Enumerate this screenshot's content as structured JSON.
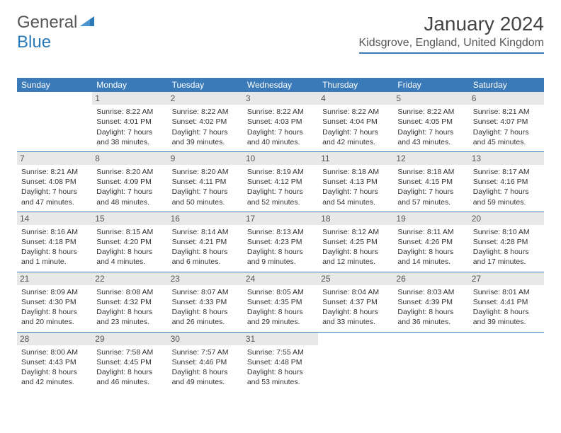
{
  "brand": {
    "word1": "General",
    "word2": "Blue",
    "word1_color": "#555555",
    "word2_color": "#2a7ab9"
  },
  "title": "January 2024",
  "location": "Kidsgrove, England, United Kingdom",
  "theme": {
    "header_bg": "#3b7ab8",
    "header_fg": "#ffffff",
    "daynum_bg": "#e8e8e8",
    "border": "#3b7ab8"
  },
  "day_names": [
    "Sunday",
    "Monday",
    "Tuesday",
    "Wednesday",
    "Thursday",
    "Friday",
    "Saturday"
  ],
  "weeks": [
    [
      {
        "n": "",
        "empty": true
      },
      {
        "n": "1",
        "sr": "Sunrise: 8:22 AM",
        "ss": "Sunset: 4:01 PM",
        "dl1": "Daylight: 7 hours",
        "dl2": "and 38 minutes."
      },
      {
        "n": "2",
        "sr": "Sunrise: 8:22 AM",
        "ss": "Sunset: 4:02 PM",
        "dl1": "Daylight: 7 hours",
        "dl2": "and 39 minutes."
      },
      {
        "n": "3",
        "sr": "Sunrise: 8:22 AM",
        "ss": "Sunset: 4:03 PM",
        "dl1": "Daylight: 7 hours",
        "dl2": "and 40 minutes."
      },
      {
        "n": "4",
        "sr": "Sunrise: 8:22 AM",
        "ss": "Sunset: 4:04 PM",
        "dl1": "Daylight: 7 hours",
        "dl2": "and 42 minutes."
      },
      {
        "n": "5",
        "sr": "Sunrise: 8:22 AM",
        "ss": "Sunset: 4:05 PM",
        "dl1": "Daylight: 7 hours",
        "dl2": "and 43 minutes."
      },
      {
        "n": "6",
        "sr": "Sunrise: 8:21 AM",
        "ss": "Sunset: 4:07 PM",
        "dl1": "Daylight: 7 hours",
        "dl2": "and 45 minutes."
      }
    ],
    [
      {
        "n": "7",
        "sr": "Sunrise: 8:21 AM",
        "ss": "Sunset: 4:08 PM",
        "dl1": "Daylight: 7 hours",
        "dl2": "and 47 minutes."
      },
      {
        "n": "8",
        "sr": "Sunrise: 8:20 AM",
        "ss": "Sunset: 4:09 PM",
        "dl1": "Daylight: 7 hours",
        "dl2": "and 48 minutes."
      },
      {
        "n": "9",
        "sr": "Sunrise: 8:20 AM",
        "ss": "Sunset: 4:11 PM",
        "dl1": "Daylight: 7 hours",
        "dl2": "and 50 minutes."
      },
      {
        "n": "10",
        "sr": "Sunrise: 8:19 AM",
        "ss": "Sunset: 4:12 PM",
        "dl1": "Daylight: 7 hours",
        "dl2": "and 52 minutes."
      },
      {
        "n": "11",
        "sr": "Sunrise: 8:18 AM",
        "ss": "Sunset: 4:13 PM",
        "dl1": "Daylight: 7 hours",
        "dl2": "and 54 minutes."
      },
      {
        "n": "12",
        "sr": "Sunrise: 8:18 AM",
        "ss": "Sunset: 4:15 PM",
        "dl1": "Daylight: 7 hours",
        "dl2": "and 57 minutes."
      },
      {
        "n": "13",
        "sr": "Sunrise: 8:17 AM",
        "ss": "Sunset: 4:16 PM",
        "dl1": "Daylight: 7 hours",
        "dl2": "and 59 minutes."
      }
    ],
    [
      {
        "n": "14",
        "sr": "Sunrise: 8:16 AM",
        "ss": "Sunset: 4:18 PM",
        "dl1": "Daylight: 8 hours",
        "dl2": "and 1 minute."
      },
      {
        "n": "15",
        "sr": "Sunrise: 8:15 AM",
        "ss": "Sunset: 4:20 PM",
        "dl1": "Daylight: 8 hours",
        "dl2": "and 4 minutes."
      },
      {
        "n": "16",
        "sr": "Sunrise: 8:14 AM",
        "ss": "Sunset: 4:21 PM",
        "dl1": "Daylight: 8 hours",
        "dl2": "and 6 minutes."
      },
      {
        "n": "17",
        "sr": "Sunrise: 8:13 AM",
        "ss": "Sunset: 4:23 PM",
        "dl1": "Daylight: 8 hours",
        "dl2": "and 9 minutes."
      },
      {
        "n": "18",
        "sr": "Sunrise: 8:12 AM",
        "ss": "Sunset: 4:25 PM",
        "dl1": "Daylight: 8 hours",
        "dl2": "and 12 minutes."
      },
      {
        "n": "19",
        "sr": "Sunrise: 8:11 AM",
        "ss": "Sunset: 4:26 PM",
        "dl1": "Daylight: 8 hours",
        "dl2": "and 14 minutes."
      },
      {
        "n": "20",
        "sr": "Sunrise: 8:10 AM",
        "ss": "Sunset: 4:28 PM",
        "dl1": "Daylight: 8 hours",
        "dl2": "and 17 minutes."
      }
    ],
    [
      {
        "n": "21",
        "sr": "Sunrise: 8:09 AM",
        "ss": "Sunset: 4:30 PM",
        "dl1": "Daylight: 8 hours",
        "dl2": "and 20 minutes."
      },
      {
        "n": "22",
        "sr": "Sunrise: 8:08 AM",
        "ss": "Sunset: 4:32 PM",
        "dl1": "Daylight: 8 hours",
        "dl2": "and 23 minutes."
      },
      {
        "n": "23",
        "sr": "Sunrise: 8:07 AM",
        "ss": "Sunset: 4:33 PM",
        "dl1": "Daylight: 8 hours",
        "dl2": "and 26 minutes."
      },
      {
        "n": "24",
        "sr": "Sunrise: 8:05 AM",
        "ss": "Sunset: 4:35 PM",
        "dl1": "Daylight: 8 hours",
        "dl2": "and 29 minutes."
      },
      {
        "n": "25",
        "sr": "Sunrise: 8:04 AM",
        "ss": "Sunset: 4:37 PM",
        "dl1": "Daylight: 8 hours",
        "dl2": "and 33 minutes."
      },
      {
        "n": "26",
        "sr": "Sunrise: 8:03 AM",
        "ss": "Sunset: 4:39 PM",
        "dl1": "Daylight: 8 hours",
        "dl2": "and 36 minutes."
      },
      {
        "n": "27",
        "sr": "Sunrise: 8:01 AM",
        "ss": "Sunset: 4:41 PM",
        "dl1": "Daylight: 8 hours",
        "dl2": "and 39 minutes."
      }
    ],
    [
      {
        "n": "28",
        "sr": "Sunrise: 8:00 AM",
        "ss": "Sunset: 4:43 PM",
        "dl1": "Daylight: 8 hours",
        "dl2": "and 42 minutes."
      },
      {
        "n": "29",
        "sr": "Sunrise: 7:58 AM",
        "ss": "Sunset: 4:45 PM",
        "dl1": "Daylight: 8 hours",
        "dl2": "and 46 minutes."
      },
      {
        "n": "30",
        "sr": "Sunrise: 7:57 AM",
        "ss": "Sunset: 4:46 PM",
        "dl1": "Daylight: 8 hours",
        "dl2": "and 49 minutes."
      },
      {
        "n": "31",
        "sr": "Sunrise: 7:55 AM",
        "ss": "Sunset: 4:48 PM",
        "dl1": "Daylight: 8 hours",
        "dl2": "and 53 minutes."
      },
      {
        "n": "",
        "empty": true
      },
      {
        "n": "",
        "empty": true
      },
      {
        "n": "",
        "empty": true
      }
    ]
  ]
}
